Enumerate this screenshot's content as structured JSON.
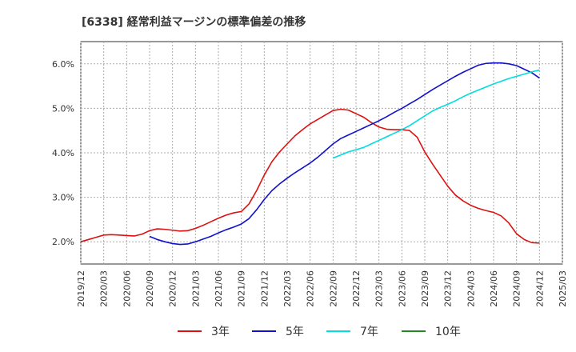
{
  "chart_data": {
    "type": "line",
    "title": "[6338]  経常利益マージンの標準偏差の推移",
    "xlabel": "",
    "ylabel": "",
    "ylim": [
      1.5,
      6.5
    ],
    "yticks": [
      2.0,
      3.0,
      4.0,
      5.0,
      6.0
    ],
    "ytick_labels": [
      "2.0%",
      "3.0%",
      "4.0%",
      "5.0%",
      "6.0%"
    ],
    "xlim": [
      "2019-12",
      "2025-03"
    ],
    "xticks": [
      "2019/12",
      "2020/03",
      "2020/06",
      "2020/09",
      "2020/12",
      "2021/03",
      "2021/06",
      "2021/09",
      "2021/12",
      "2022/03",
      "2022/06",
      "2022/09",
      "2022/12",
      "2023/03",
      "2023/06",
      "2023/09",
      "2023/12",
      "2024/03",
      "2024/06",
      "2024/09",
      "2024/12",
      "2025/03"
    ],
    "grid": true,
    "legend_position": "bottom",
    "series": [
      {
        "name": "3年",
        "color": "#dd1111",
        "x": [
          "2019-12",
          "2020-01",
          "2020-02",
          "2020-03",
          "2020-04",
          "2020-05",
          "2020-06",
          "2020-07",
          "2020-08",
          "2020-09",
          "2020-10",
          "2020-11",
          "2020-12",
          "2021-01",
          "2021-02",
          "2021-03",
          "2021-04",
          "2021-05",
          "2021-06",
          "2021-07",
          "2021-08",
          "2021-09",
          "2021-10",
          "2021-11",
          "2021-12",
          "2022-01",
          "2022-02",
          "2022-03",
          "2022-04",
          "2022-05",
          "2022-06",
          "2022-07",
          "2022-08",
          "2022-09",
          "2022-10",
          "2022-11",
          "2022-12",
          "2023-01",
          "2023-02",
          "2023-03",
          "2023-04",
          "2023-05",
          "2023-06",
          "2023-07",
          "2023-08",
          "2023-09",
          "2023-10",
          "2023-11",
          "2023-12",
          "2024-01",
          "2024-02",
          "2024-03",
          "2024-04",
          "2024-05",
          "2024-06",
          "2024-07",
          "2024-08",
          "2024-09",
          "2024-10",
          "2024-11",
          "2024-12"
        ],
        "values": [
          2.0,
          2.05,
          2.1,
          2.15,
          2.16,
          2.15,
          2.14,
          2.13,
          2.17,
          2.25,
          2.29,
          2.28,
          2.26,
          2.24,
          2.25,
          2.3,
          2.37,
          2.45,
          2.53,
          2.6,
          2.65,
          2.68,
          2.85,
          3.15,
          3.5,
          3.8,
          4.02,
          4.2,
          4.38,
          4.52,
          4.65,
          4.75,
          4.85,
          4.95,
          4.98,
          4.96,
          4.88,
          4.8,
          4.68,
          4.58,
          4.53,
          4.52,
          4.52,
          4.5,
          4.35,
          4.02,
          3.75,
          3.5,
          3.25,
          3.05,
          2.92,
          2.82,
          2.75,
          2.7,
          2.66,
          2.58,
          2.42,
          2.18,
          2.05,
          1.98,
          1.97
        ]
      },
      {
        "name": "5年",
        "color": "#1111cc",
        "x": [
          "2020-09",
          "2020-10",
          "2020-11",
          "2020-12",
          "2021-01",
          "2021-02",
          "2021-03",
          "2021-04",
          "2021-05",
          "2021-06",
          "2021-07",
          "2021-08",
          "2021-09",
          "2021-10",
          "2021-11",
          "2021-12",
          "2022-01",
          "2022-02",
          "2022-03",
          "2022-04",
          "2022-05",
          "2022-06",
          "2022-07",
          "2022-08",
          "2022-09",
          "2022-10",
          "2022-11",
          "2022-12",
          "2023-01",
          "2023-02",
          "2023-03",
          "2023-04",
          "2023-05",
          "2023-06",
          "2023-07",
          "2023-08",
          "2023-09",
          "2023-10",
          "2023-11",
          "2023-12",
          "2024-01",
          "2024-02",
          "2024-03",
          "2024-04",
          "2024-05",
          "2024-06",
          "2024-07",
          "2024-08",
          "2024-09",
          "2024-10",
          "2024-11",
          "2024-12"
        ],
        "values": [
          2.12,
          2.05,
          2.0,
          1.96,
          1.94,
          1.95,
          2.0,
          2.06,
          2.12,
          2.2,
          2.27,
          2.33,
          2.4,
          2.52,
          2.72,
          2.95,
          3.15,
          3.3,
          3.43,
          3.55,
          3.66,
          3.77,
          3.9,
          4.05,
          4.2,
          4.32,
          4.4,
          4.48,
          4.56,
          4.64,
          4.72,
          4.81,
          4.91,
          5.0,
          5.1,
          5.2,
          5.31,
          5.42,
          5.52,
          5.62,
          5.72,
          5.81,
          5.89,
          5.97,
          6.01,
          6.02,
          6.02,
          6.0,
          5.96,
          5.88,
          5.8,
          5.68
        ]
      },
      {
        "name": "7年",
        "color": "#00dddd",
        "x": [
          "2022-09",
          "2022-10",
          "2022-11",
          "2022-12",
          "2023-01",
          "2023-02",
          "2023-03",
          "2023-04",
          "2023-05",
          "2023-06",
          "2023-07",
          "2023-08",
          "2023-09",
          "2023-10",
          "2023-11",
          "2023-12",
          "2024-01",
          "2024-02",
          "2024-03",
          "2024-04",
          "2024-05",
          "2024-06",
          "2024-07",
          "2024-08",
          "2024-09",
          "2024-10",
          "2024-11",
          "2024-12"
        ],
        "values": [
          3.88,
          3.95,
          4.02,
          4.07,
          4.12,
          4.2,
          4.28,
          4.36,
          4.44,
          4.52,
          4.61,
          4.72,
          4.83,
          4.94,
          5.02,
          5.09,
          5.17,
          5.26,
          5.34,
          5.41,
          5.48,
          5.55,
          5.61,
          5.67,
          5.72,
          5.77,
          5.82,
          5.86
        ]
      },
      {
        "name": "10年",
        "color": "#228822",
        "x": [],
        "values": []
      }
    ]
  }
}
